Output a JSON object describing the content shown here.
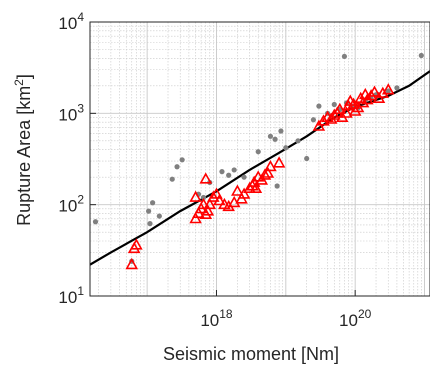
{
  "chart_data": {
    "type": "scatter",
    "title": "",
    "xlabel": "Seismic moment [Nm]",
    "ylabel_main": "Rupture Area [km",
    "ylabel_sup": "2",
    "ylabel_tail": "]",
    "x_scale": "log",
    "y_scale": "log",
    "xlim": [
      1.5e+16,
      1.2e+21
    ],
    "ylim": [
      10,
      10000
    ],
    "x_tick_labels": [
      {
        "base": "10",
        "exp": "18",
        "value": 1e+18
      },
      {
        "base": "10",
        "exp": "20",
        "value": 1e+20
      }
    ],
    "y_tick_labels": [
      {
        "base": "10",
        "exp": "1",
        "value": 10
      },
      {
        "base": "10",
        "exp": "2",
        "value": 100
      },
      {
        "base": "10",
        "exp": "3",
        "value": 1000
      },
      {
        "base": "10",
        "exp": "4",
        "value": 10000
      }
    ],
    "grid": true,
    "legend": "none",
    "colors": {
      "gray_points": "#808080",
      "triangles": "#ff0000",
      "curve": "#000000",
      "grid": "#c8c8c8"
    },
    "series": [
      {
        "kind": "scatter-dot",
        "points": [
          [
            1.8e+16,
            65
          ],
          [
            6e+16,
            24
          ],
          [
            1.05e+17,
            85
          ],
          [
            1.1e+17,
            62
          ],
          [
            1.2e+17,
            105
          ],
          [
            1.5e+17,
            75
          ],
          [
            2.3e+17,
            190
          ],
          [
            2.7e+17,
            260
          ],
          [
            3.2e+17,
            310
          ],
          [
            5.5e+17,
            130
          ],
          [
            6.5e+17,
            120
          ],
          [
            8e+17,
            175
          ],
          [
            1.2e+18,
            230
          ],
          [
            1.5e+18,
            210
          ],
          [
            1.8e+18,
            240
          ],
          [
            2.5e+18,
            200
          ],
          [
            4e+18,
            380
          ],
          [
            6e+18,
            560
          ],
          [
            7e+18,
            520
          ],
          [
            8.5e+18,
            640
          ],
          [
            1e+19,
            420
          ],
          [
            7.5e+18,
            160
          ],
          [
            1.5e+19,
            500
          ],
          [
            2e+19,
            320
          ],
          [
            2.5e+19,
            850
          ],
          [
            3e+19,
            1200
          ],
          [
            4e+19,
            1000
          ],
          [
            5e+19,
            1250
          ],
          [
            6e+19,
            1100
          ],
          [
            7.5e+19,
            1300
          ],
          [
            9e+19,
            1200
          ],
          [
            1.1e+20,
            1150
          ],
          [
            1.4e+20,
            1400
          ],
          [
            1.7e+20,
            1450
          ],
          [
            2e+20,
            1600
          ],
          [
            3e+20,
            1750
          ],
          [
            4e+20,
            1900
          ],
          [
            7e+19,
            4200
          ],
          [
            9e+20,
            4300
          ]
        ]
      },
      {
        "kind": "scatter-triangle",
        "points": [
          [
            6e+16,
            22
          ],
          [
            6.5e+16,
            33
          ],
          [
            7e+16,
            36
          ],
          [
            5e+17,
            70
          ],
          [
            5.5e+17,
            80
          ],
          [
            6e+17,
            90
          ],
          [
            6.5e+17,
            100
          ],
          [
            7e+17,
            78
          ],
          [
            7.5e+17,
            85
          ],
          [
            8e+17,
            100
          ],
          [
            9e+17,
            120
          ],
          [
            1e+18,
            130
          ],
          [
            1.1e+18,
            110
          ],
          [
            1.3e+18,
            100
          ],
          [
            1.5e+18,
            95
          ],
          [
            1.8e+18,
            105
          ],
          [
            2e+18,
            140
          ],
          [
            2.3e+18,
            115
          ],
          [
            2.5e+18,
            130
          ],
          [
            3e+18,
            150
          ],
          [
            3.3e+18,
            160
          ],
          [
            3.5e+18,
            175
          ],
          [
            3.7e+18,
            150
          ],
          [
            4e+18,
            200
          ],
          [
            4.5e+18,
            185
          ],
          [
            5e+18,
            210
          ],
          [
            5.5e+18,
            220
          ],
          [
            6e+18,
            260
          ],
          [
            5e+17,
            120
          ],
          [
            8e+18,
            285
          ],
          [
            7e+17,
            190
          ],
          [
            3e+19,
            720
          ],
          [
            3.5e+19,
            820
          ],
          [
            4e+19,
            900
          ],
          [
            4.5e+19,
            860
          ],
          [
            5e+19,
            950
          ],
          [
            5.5e+19,
            1000
          ],
          [
            6e+19,
            1100
          ],
          [
            6.5e+19,
            900
          ],
          [
            7.5e+19,
            1000
          ],
          [
            8e+19,
            1200
          ],
          [
            8.5e+19,
            1350
          ],
          [
            9.5e+19,
            1250
          ],
          [
            1e+20,
            1050
          ],
          [
            1.1e+20,
            1150
          ],
          [
            1.2e+20,
            1450
          ],
          [
            1.3e+20,
            1300
          ],
          [
            1.4e+20,
            1600
          ],
          [
            1.5e+20,
            1400
          ],
          [
            1.7e+20,
            1550
          ],
          [
            1.9e+20,
            1700
          ],
          [
            2.2e+20,
            1450
          ],
          [
            2.5e+20,
            1650
          ],
          [
            3e+20,
            1800
          ]
        ]
      },
      {
        "kind": "curve",
        "points": [
          [
            1.5e+16,
            22
          ],
          [
            3e+16,
            30
          ],
          [
            1e+17,
            50
          ],
          [
            3e+17,
            85
          ],
          [
            1e+18,
            140
          ],
          [
            3e+18,
            240
          ],
          [
            8e+18,
            370
          ],
          [
            2e+19,
            560
          ],
          [
            5e+19,
            900
          ],
          [
            1e+20,
            1180
          ],
          [
            3e+20,
            1550
          ],
          [
            6e+20,
            2000
          ],
          [
            1.2e+21,
            2900
          ]
        ]
      }
    ]
  }
}
